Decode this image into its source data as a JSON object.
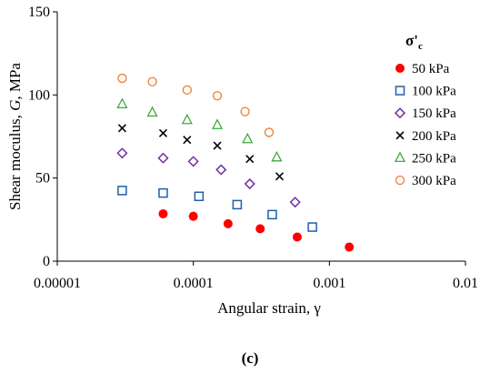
{
  "caption": "(c)",
  "chart_data": {
    "type": "scatter",
    "xlabel": "Angular strain, γ",
    "ylabel_parts": [
      "Shear moculus, ",
      "G",
      ", MPa"
    ],
    "xscale": "log",
    "xlim": [
      1e-05,
      0.01
    ],
    "ylim": [
      0,
      150
    ],
    "x_ticks": [
      1e-05,
      0.0001,
      0.001,
      0.01
    ],
    "x_tick_labels": [
      "0.00001",
      "0.0001",
      "0.001",
      "0.01"
    ],
    "y_ticks": [
      0,
      50,
      100,
      150
    ],
    "y_tick_labels": [
      "0",
      "50",
      "100",
      "150"
    ],
    "grid": false,
    "legend": {
      "position": "right",
      "title_main": "σ'",
      "title_sub": "c"
    },
    "series": [
      {
        "name": "50 kPa",
        "marker": "filled-circle",
        "color": "#ff0000",
        "x": [
          6e-05,
          0.0001,
          0.00018,
          0.00031,
          0.00058,
          0.0014
        ],
        "y": [
          28.5,
          27,
          22.5,
          19.5,
          14.5,
          8.5
        ]
      },
      {
        "name": "100 kPa",
        "marker": "open-square",
        "color": "#1f5fad",
        "x": [
          3e-05,
          6e-05,
          0.00011,
          0.00021,
          0.00038,
          0.00075
        ],
        "y": [
          42.5,
          41,
          39,
          34,
          28,
          20.5
        ]
      },
      {
        "name": "150 kPa",
        "marker": "open-diamond",
        "color": "#7030a0",
        "x": [
          3e-05,
          6e-05,
          0.0001,
          0.00016,
          0.00026,
          0.00056
        ],
        "y": [
          65,
          62,
          60,
          55,
          46.5,
          35.5
        ]
      },
      {
        "name": "200 kPa",
        "marker": "x",
        "color": "#000000",
        "x": [
          3e-05,
          6e-05,
          9e-05,
          0.00015,
          0.00026,
          0.00043
        ],
        "y": [
          80,
          77,
          73,
          69.5,
          61.5,
          51
        ]
      },
      {
        "name": "250 kPa",
        "marker": "open-triangle",
        "color": "#3faa3f",
        "x": [
          3e-05,
          5e-05,
          9e-05,
          0.00015,
          0.00025,
          0.00041
        ],
        "y": [
          94.5,
          89.5,
          85,
          82,
          73.5,
          62.5
        ]
      },
      {
        "name": "300 kPa",
        "marker": "open-circle",
        "color": "#ed7d31",
        "x": [
          3e-05,
          5e-05,
          9e-05,
          0.00015,
          0.00024,
          0.00036
        ],
        "y": [
          110,
          108,
          103,
          99.5,
          90,
          77.5
        ]
      }
    ]
  }
}
